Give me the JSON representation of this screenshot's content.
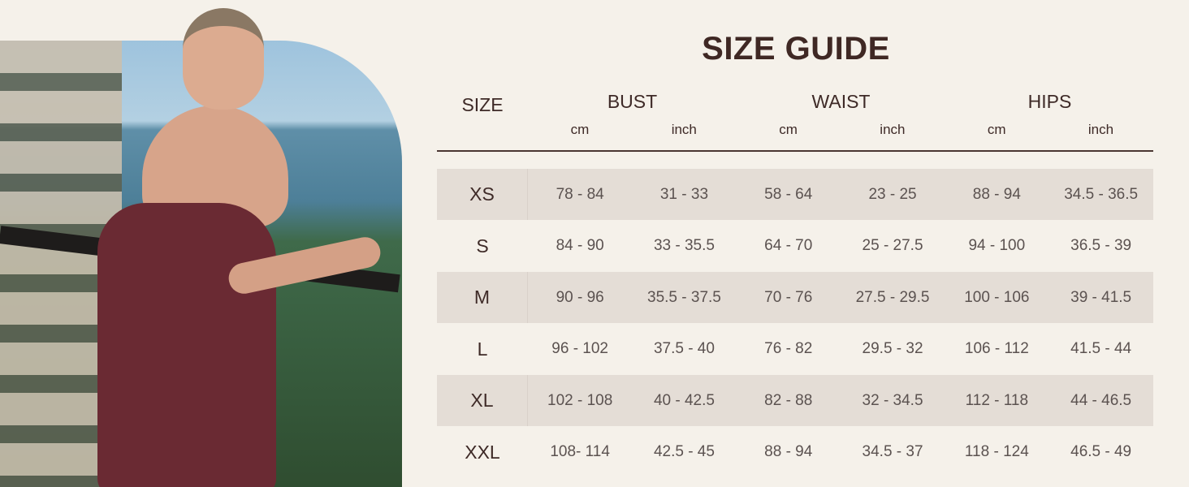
{
  "title": "SIZE GUIDE",
  "headers": {
    "size": "SIZE",
    "groups": [
      "BUST",
      "WAIST",
      "HIPS"
    ],
    "units": [
      "cm",
      "inch",
      "cm",
      "inch",
      "cm",
      "inch"
    ]
  },
  "rows": [
    {
      "size": "XS",
      "values": [
        "78 - 84",
        "31 - 33",
        "58 - 64",
        "23 - 25",
        "88 - 94",
        "34.5 - 36.5"
      ]
    },
    {
      "size": "S",
      "values": [
        "84 - 90",
        "33 - 35.5",
        "64 - 70",
        "25 - 27.5",
        "94 - 100",
        "36.5 - 39"
      ]
    },
    {
      "size": "M",
      "values": [
        "90 - 96",
        "35.5 - 37.5",
        "70 - 76",
        "27.5 - 29.5",
        "100 - 106",
        "39 - 41.5"
      ]
    },
    {
      "size": "L",
      "values": [
        "96 - 102",
        "37.5 - 40",
        "76 - 82",
        "29.5 - 32",
        "106 - 112",
        "41.5 - 44"
      ]
    },
    {
      "size": "XL",
      "values": [
        "102 - 108",
        "40 - 42.5",
        "82 - 88",
        "32 - 34.5",
        "112 - 118",
        "44 - 46.5"
      ]
    },
    {
      "size": "XXL",
      "values": [
        "108- 114",
        "42.5 - 45",
        "88 - 94",
        "34.5 - 37",
        "118 - 124",
        "46.5 - 49"
      ]
    }
  ],
  "colors": {
    "background": "#f5f1ea",
    "text": "#3e2a27",
    "stripe": "#e4ddd6",
    "dress": "#6a2a33"
  }
}
